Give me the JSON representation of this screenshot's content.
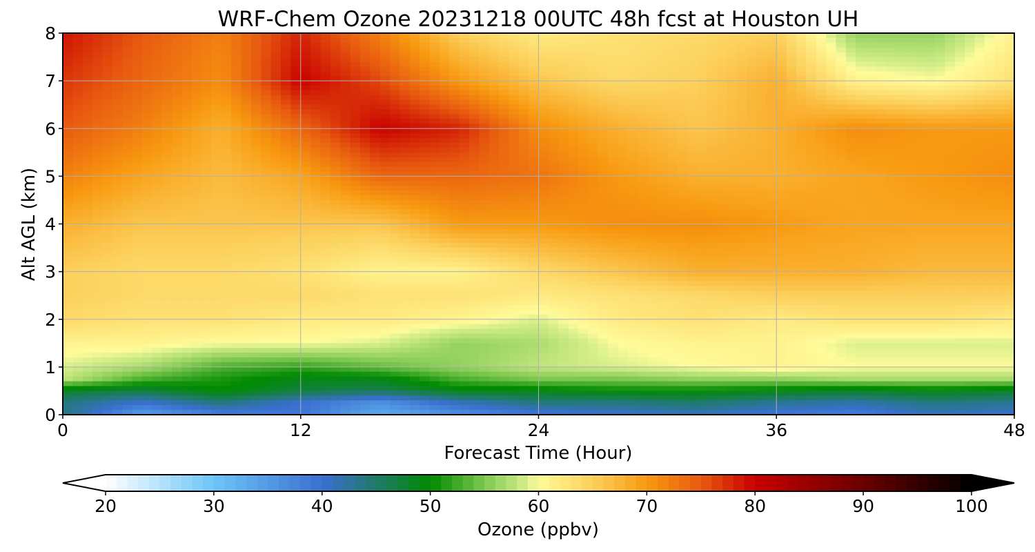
{
  "chart_data": {
    "type": "heatmap",
    "title": "WRF-Chem Ozone  20231218 00UTC 48h fcst at Houston UH",
    "xlabel": "Forecast Time (Hour)",
    "ylabel": "Alt AGL (km)",
    "xlim": [
      0,
      48
    ],
    "ylim": [
      0,
      8
    ],
    "xticks": [
      0,
      12,
      24,
      36,
      48
    ],
    "yticks": [
      0,
      1,
      2,
      3,
      4,
      5,
      6,
      7,
      8
    ],
    "grid": true,
    "x": [
      0,
      4,
      8,
      12,
      16,
      20,
      24,
      28,
      32,
      36,
      40,
      44,
      48
    ],
    "y": [
      0,
      0.25,
      0.5,
      0.75,
      1,
      1.5,
      2,
      2.5,
      3,
      4,
      5,
      6,
      7,
      8
    ],
    "z": [
      [
        44,
        34,
        38,
        39,
        33,
        36,
        39,
        40,
        41,
        39,
        38,
        41,
        40
      ],
      [
        44,
        40,
        44,
        40,
        36,
        41,
        44,
        44,
        45,
        43,
        42,
        44,
        43
      ],
      [
        48,
        47,
        50,
        47,
        46,
        49,
        49,
        50,
        50,
        49,
        48,
        49,
        48
      ],
      [
        58,
        53,
        51,
        49,
        49,
        53,
        55,
        55,
        56,
        56,
        57,
        57,
        57
      ],
      [
        59,
        57,
        53,
        52,
        54,
        56,
        58,
        59,
        60,
        61,
        60,
        60,
        60
      ],
      [
        61,
        61,
        60,
        60,
        59,
        56,
        57,
        60,
        61,
        61,
        59,
        59,
        59
      ],
      [
        64,
        63,
        63,
        62,
        62,
        61,
        59,
        62,
        63,
        62,
        63,
        63,
        62
      ],
      [
        65,
        64,
        64,
        64,
        63,
        63,
        62,
        63,
        64,
        65,
        65,
        65,
        65
      ],
      [
        65,
        64,
        64,
        63,
        61,
        61,
        64,
        66,
        68,
        68,
        68,
        67,
        67
      ],
      [
        68,
        66,
        66,
        66,
        66,
        70,
        70,
        71,
        71,
        70,
        69,
        69,
        69
      ],
      [
        72,
        69,
        67,
        69,
        74,
        74,
        73,
        70,
        68,
        68,
        69,
        70,
        71
      ],
      [
        75,
        72,
        68,
        74,
        80,
        78,
        71,
        68,
        66,
        68,
        71,
        70,
        70
      ],
      [
        77,
        74,
        71,
        80,
        76,
        70,
        66,
        64,
        65,
        68,
        61,
        60,
        63
      ],
      [
        79,
        75,
        72,
        78,
        72,
        65,
        62,
        63,
        64,
        65,
        56,
        56,
        61
      ]
    ],
    "colorbar": {
      "label": "Ozone  (ppbv)",
      "vmin": 20,
      "vmax": 100,
      "ticks": [
        20,
        30,
        40,
        50,
        60,
        70,
        80,
        90,
        100
      ],
      "extend": "both",
      "stops": [
        {
          "v": 20,
          "c": "#ffffff"
        },
        {
          "v": 30,
          "c": "#6cc5f7"
        },
        {
          "v": 40,
          "c": "#3a6fd0"
        },
        {
          "v": 45,
          "c": "#1f7a6a"
        },
        {
          "v": 50,
          "c": "#008a00"
        },
        {
          "v": 55,
          "c": "#7ec850"
        },
        {
          "v": 59,
          "c": "#d8ef8c"
        },
        {
          "v": 60,
          "c": "#fffb9a"
        },
        {
          "v": 65,
          "c": "#fcd05c"
        },
        {
          "v": 70,
          "c": "#f89a10"
        },
        {
          "v": 75,
          "c": "#e85a10"
        },
        {
          "v": 80,
          "c": "#c80000"
        },
        {
          "v": 90,
          "c": "#6a0000"
        },
        {
          "v": 100,
          "c": "#000000"
        }
      ]
    }
  }
}
